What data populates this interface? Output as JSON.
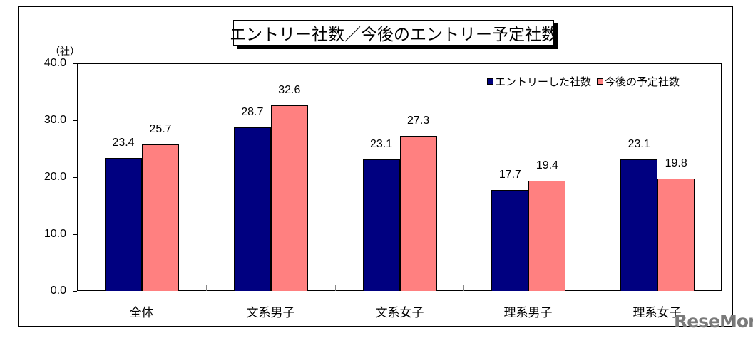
{
  "chart_data": {
    "type": "bar",
    "title": "エントリー社数／今後のエントリー予定社数",
    "xlabel": "",
    "ylabel": "（社）",
    "ylim": [
      0,
      40
    ],
    "yticks": [
      "0.0",
      "10.0",
      "20.0",
      "30.0",
      "40.0"
    ],
    "categories": [
      "全体",
      "文系男子",
      "文系女子",
      "理系男子",
      "理系女子"
    ],
    "series": [
      {
        "name": "エントリーした社数",
        "color": "#000080",
        "values": [
          23.4,
          28.7,
          23.1,
          17.7,
          23.1
        ],
        "labels": [
          "23.4",
          "28.7",
          "23.1",
          "17.7",
          "23.1"
        ]
      },
      {
        "name": "今後の予定社数",
        "color": "#FF8080",
        "values": [
          25.7,
          32.6,
          27.3,
          19.4,
          19.8
        ],
        "labels": [
          "25.7",
          "32.6",
          "27.3",
          "19.4",
          "19.8"
        ]
      }
    ],
    "legend_position": "top-right inside plot",
    "grid": false
  },
  "watermark": "ReseMom"
}
